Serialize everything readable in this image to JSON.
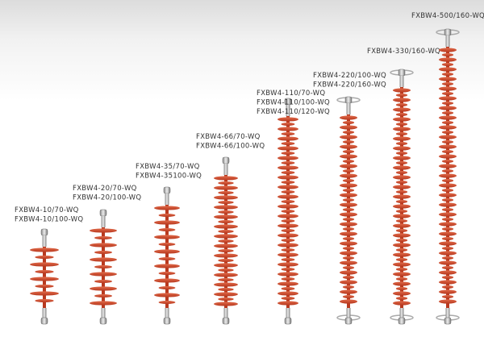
{
  "products": [
    {
      "labels": [
        "FXBW4-10/70-WQ",
        "FXBW4-10/100-WQ"
      ]
    },
    {
      "labels": [
        "FXBW4-20/70-WQ",
        "FXBW4-20/100-WQ"
      ]
    },
    {
      "labels": [
        "FXBW4-35/70-WQ",
        "FXBW4-35100-WQ"
      ]
    },
    {
      "labels": [
        "FXBW4-66/70-WQ",
        "FXBW4-66/100-WQ"
      ]
    },
    {
      "labels": [
        "FXBW4-110/70-WQ",
        "FXBW4-110/100-WQ",
        "FXBW4-110/120-WQ"
      ]
    },
    {
      "labels": [
        "FXBW4-220/100-WQ",
        "FXBW4-220/160-WQ"
      ]
    },
    {
      "labels": [
        "FXBW4-330/160-WQ"
      ]
    },
    {
      "labels": [
        "FXBW4-500/160-WQ"
      ]
    }
  ]
}
